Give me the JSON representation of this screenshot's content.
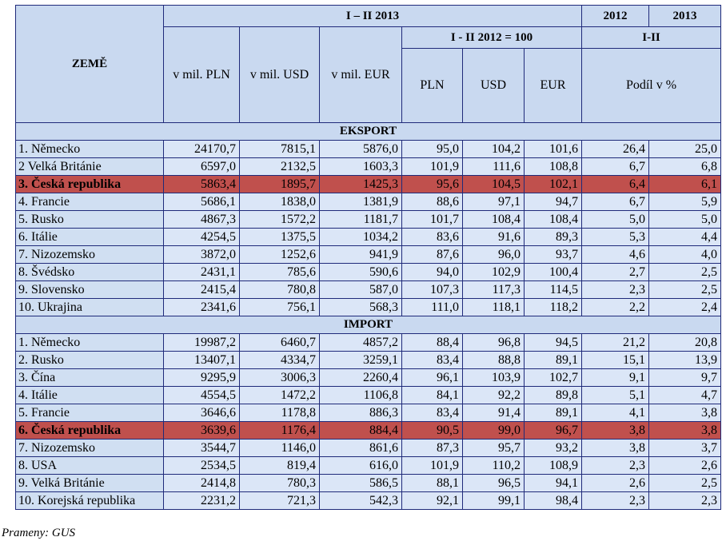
{
  "header": {
    "country_col": "ZEMĚ",
    "period_main": "I – II 2013",
    "year_2012": "2012",
    "year_2013": "2013",
    "index_group": "I - II 2012 = 100",
    "share_group": "I-II",
    "col_pln": "v mil. PLN",
    "col_usd": "v mil. USD",
    "col_eur": "v mil. EUR",
    "idx_pln": "PLN",
    "idx_usd": "USD",
    "idx_eur": "EUR",
    "share_label": "Podíl v %"
  },
  "export_label": "EKSPORT",
  "import_label": "IMPORT",
  "export_rows": [
    {
      "name": "1. Německo",
      "pln": "24170,7",
      "usd": "7815,1",
      "eur": "5876,0",
      "ipln": "95,0",
      "iusd": "104,2",
      "ieur": "101,6",
      "s2012": "26,4",
      "s2013": "25,0",
      "hl": false
    },
    {
      "name": "2 Velká Británie",
      "pln": "6597,0",
      "usd": "2132,5",
      "eur": "1603,3",
      "ipln": "101,9",
      "iusd": "111,6",
      "ieur": "108,8",
      "s2012": "6,7",
      "s2013": "6,8",
      "hl": false
    },
    {
      "name": "3. Česká republika",
      "pln": "5863,4",
      "usd": "1895,7",
      "eur": "1425,3",
      "ipln": "95,6",
      "iusd": "104,5",
      "ieur": "102,1",
      "s2012": "6,4",
      "s2013": "6,1",
      "hl": true
    },
    {
      "name": "4. Francie",
      "pln": "5686,1",
      "usd": "1838,0",
      "eur": "1381,9",
      "ipln": "88,6",
      "iusd": "97,1",
      "ieur": "94,7",
      "s2012": "6,7",
      "s2013": "5,9",
      "hl": false
    },
    {
      "name": "5. Rusko",
      "pln": "4867,3",
      "usd": "1572,2",
      "eur": "1181,7",
      "ipln": "101,7",
      "iusd": "108,4",
      "ieur": "108,4",
      "s2012": "5,0",
      "s2013": "5,0",
      "hl": false
    },
    {
      "name": "6. Itálie",
      "pln": "4254,5",
      "usd": "1375,5",
      "eur": "1034,2",
      "ipln": "83,6",
      "iusd": "91,6",
      "ieur": "89,3",
      "s2012": "5,3",
      "s2013": "4,4",
      "hl": false
    },
    {
      "name": "7. Nizozemsko",
      "pln": "3872,0",
      "usd": "1252,6",
      "eur": "941,9",
      "ipln": "87,6",
      "iusd": "96,0",
      "ieur": "93,7",
      "s2012": "4,6",
      "s2013": "4,0",
      "hl": false
    },
    {
      "name": "8. Švédsko",
      "pln": "2431,1",
      "usd": "785,6",
      "eur": "590,6",
      "ipln": "94,0",
      "iusd": "102,9",
      "ieur": "100,4",
      "s2012": "2,7",
      "s2013": "2,5",
      "hl": false
    },
    {
      "name": "9. Slovensko",
      "pln": "2415,4",
      "usd": "780,8",
      "eur": "587,0",
      "ipln": "107,3",
      "iusd": "117,3",
      "ieur": "114,5",
      "s2012": "2,3",
      "s2013": "2,5",
      "hl": false
    },
    {
      "name": "10. Ukrajina",
      "pln": "2341,6",
      "usd": "756,1",
      "eur": "568,3",
      "ipln": "111,0",
      "iusd": "118,1",
      "ieur": "118,2",
      "s2012": "2,2",
      "s2013": "2,4",
      "hl": false
    }
  ],
  "import_rows": [
    {
      "name": "1. Německo",
      "pln": "19987,2",
      "usd": "6460,7",
      "eur": "4857,2",
      "ipln": "88,4",
      "iusd": "96,8",
      "ieur": "94,5",
      "s2012": "21,2",
      "s2013": "20,8",
      "hl": false
    },
    {
      "name": "2. Rusko",
      "pln": "13407,1",
      "usd": "4334,7",
      "eur": "3259,1",
      "ipln": "83,4",
      "iusd": "88,8",
      "ieur": "89,1",
      "s2012": "15,1",
      "s2013": "13,9",
      "hl": false
    },
    {
      "name": "3. Čína",
      "pln": "9295,9",
      "usd": "3006,3",
      "eur": "2260,4",
      "ipln": "96,1",
      "iusd": "103,9",
      "ieur": "102,7",
      "s2012": "9,1",
      "s2013": "9,7",
      "hl": false
    },
    {
      "name": "4. Itálie",
      "pln": "4554,5",
      "usd": "1472,2",
      "eur": "1106,8",
      "ipln": "84,1",
      "iusd": "92,2",
      "ieur": "89,8",
      "s2012": "5,1",
      "s2013": "4,7",
      "hl": false
    },
    {
      "name": "5. Francie",
      "pln": "3646,6",
      "usd": "1178,8",
      "eur": "886,3",
      "ipln": "83,4",
      "iusd": "91,4",
      "ieur": "89,1",
      "s2012": "4,1",
      "s2013": "3,8",
      "hl": false
    },
    {
      "name": "6. Česká republika",
      "pln": "3639,6",
      "usd": "1176,4",
      "eur": "884,4",
      "ipln": "90,5",
      "iusd": "99,0",
      "ieur": "96,7",
      "s2012": "3,8",
      "s2013": "3,8",
      "hl": true
    },
    {
      "name": "7. Nizozemsko",
      "pln": "3544,7",
      "usd": "1146,0",
      "eur": "861,6",
      "ipln": "87,3",
      "iusd": "95,7",
      "ieur": "93,2",
      "s2012": "3,8",
      "s2013": "3,7",
      "hl": false
    },
    {
      "name": "8. USA",
      "pln": "2534,5",
      "usd": "819,4",
      "eur": "616,0",
      "ipln": "101,9",
      "iusd": "110,2",
      "ieur": "108,9",
      "s2012": "2,3",
      "s2013": "2,6",
      "hl": false
    },
    {
      "name": "9. Velká Británie",
      "pln": "2414,8",
      "usd": "780,3",
      "eur": "586,5",
      "ipln": "88,1",
      "iusd": "96,5",
      "ieur": "94,1",
      "s2012": "2,6",
      "s2013": "2,5",
      "hl": false
    },
    {
      "name": "10. Korejská republika",
      "pln": "2231,2",
      "usd": "721,3",
      "eur": "542,3",
      "ipln": "92,1",
      "iusd": "99,1",
      "ieur": "98,4",
      "s2012": "2,3",
      "s2013": "2,3",
      "hl": false
    }
  ],
  "source": "Prameny: GUS"
}
